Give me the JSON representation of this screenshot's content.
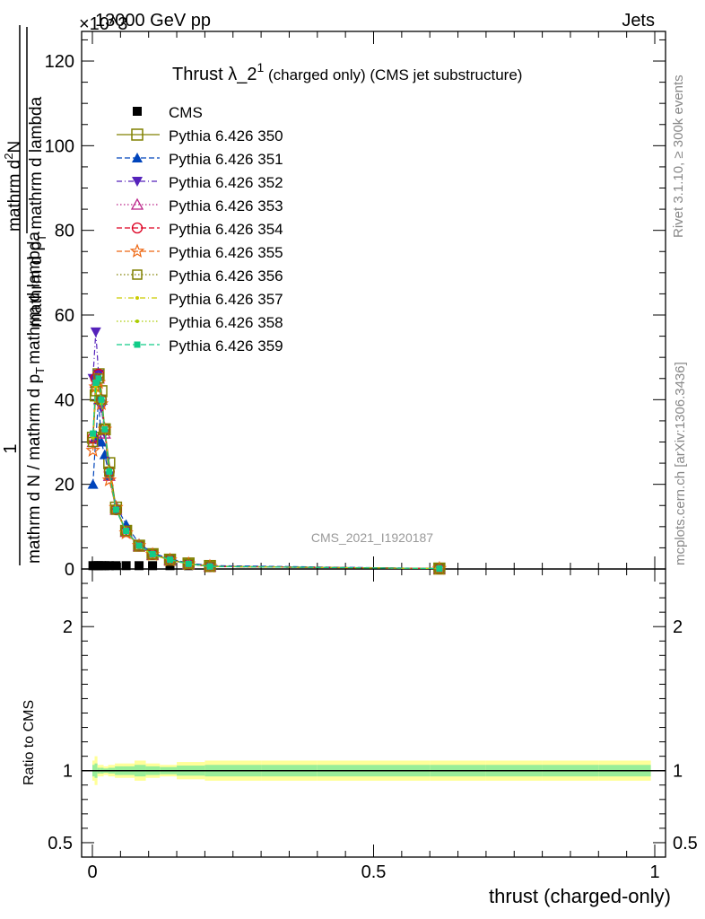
{
  "header": {
    "top_left": "13000 GeV pp",
    "top_right": "Jets",
    "multiplier": "×10^3"
  },
  "side_labels": {
    "rivet": "Rivet 3.1.10, ≥ 300k events",
    "mcplots": "mcplots.cern.ch [arXiv:1306.3436]"
  },
  "watermark": "CMS_2021_I1920187",
  "title": {
    "main": "Thrust λ_2",
    "superscript": "1",
    "suffix": " (charged only) (CMS jet substructure)"
  },
  "ylabel_main": {
    "line1": "1",
    "line2": "mathrm d N / mathrm d p",
    "line2_sub": "T",
    "line2_tail": "mathrm d lambda",
    "numerator": "mathrm d",
    "numerator_sup": "2",
    "numerator_tail": "N",
    "denominator": "mathrm d p",
    "denominator_sub": "T",
    "denominator_tail": " mathrm d lambda"
  },
  "ylabel_ratio": "Ratio to CMS",
  "xlabel": "thrust (charged-only)",
  "colors": {
    "cms": "#000000",
    "band_outer": "#ffff99",
    "band_inner": "#99ee99",
    "s350": "#808000",
    "s351": "#0044bb",
    "s352": "#5522bb",
    "s353": "#bb2288",
    "s354": "#dd0022",
    "s355": "#ee6611",
    "s356": "#808000",
    "s357": "#cccc00",
    "s358": "#aacc00",
    "s359": "#11cc88"
  },
  "chart_data": {
    "type": "line",
    "x_range": [
      -0.02,
      1.0
    ],
    "main_ylim": [
      0,
      127
    ],
    "main_y_multiplier": 1000,
    "main_yticks": [
      0,
      20,
      40,
      60,
      80,
      100,
      120
    ],
    "ratio_ylim": [
      0.4,
      2.4
    ],
    "ratio_yticks": [
      0.5,
      1,
      2
    ],
    "xticks": [
      0,
      0.5,
      1
    ],
    "xtick_labels": [
      "0",
      "0.5",
      "1"
    ],
    "legend_position": "top-left",
    "cms_data": {
      "x": [
        0.001,
        0.006,
        0.011,
        0.016,
        0.022,
        0.03,
        0.042,
        0.06,
        0.083,
        0.107,
        0.138,
        0.171,
        0.209,
        0.617
      ],
      "y": [
        0.15,
        0.15,
        0.15,
        0.15,
        0.15,
        0.15,
        0.15,
        0.15,
        0.15,
        0.15,
        0.15,
        0.15,
        0.15,
        0.15
      ]
    },
    "series": [
      {
        "name": "Pythia 6.426 350",
        "marker": "square-open",
        "dash": "solid",
        "color_key": "s350",
        "y": [
          31,
          41,
          46,
          42,
          33,
          25,
          14.5,
          9,
          5.5,
          3.5,
          2.2,
          1.3,
          0.7,
          0.1
        ]
      },
      {
        "name": "Pythia 6.426 351",
        "marker": "triangle-up",
        "dash": "dashed",
        "color_key": "s351",
        "y": [
          20,
          31,
          40,
          30,
          27,
          22,
          15,
          10.5,
          6,
          3.8,
          2.4,
          1.4,
          0.8,
          0.1
        ]
      },
      {
        "name": "Pythia 6.426 352",
        "marker": "triangle-down",
        "dash": "dashdot",
        "color_key": "s352",
        "y": [
          45,
          56,
          46,
          38,
          32,
          22,
          14,
          9,
          5.5,
          3.5,
          2.1,
          1.2,
          0.6,
          0.1
        ]
      },
      {
        "name": "Pythia 6.426 353",
        "marker": "triangle-up-open",
        "dash": "dotted",
        "color_key": "s353",
        "y": [
          30,
          44,
          45,
          40,
          32,
          22,
          14,
          8.8,
          5.4,
          3.4,
          2.1,
          1.2,
          0.6,
          0.1
        ]
      },
      {
        "name": "Pythia 6.426 354",
        "marker": "circle-open",
        "dash": "dashed",
        "color_key": "s354",
        "y": [
          31,
          45,
          46,
          40,
          33,
          23,
          14,
          9,
          5.5,
          3.5,
          2.2,
          1.2,
          0.6,
          0.1
        ]
      },
      {
        "name": "Pythia 6.426 355",
        "marker": "star-open",
        "dash": "dashed",
        "color_key": "s355",
        "y": [
          28,
          43,
          44,
          39,
          33,
          21,
          14.5,
          8.5,
          5.5,
          3.4,
          2.1,
          1.2,
          0.6,
          0.1
        ]
      },
      {
        "name": "Pythia 6.426 356",
        "marker": "square-open-small",
        "dash": "dotted",
        "color_key": "s356",
        "y": [
          30,
          42,
          45,
          40,
          33,
          23,
          14,
          9,
          5.5,
          3.5,
          2.2,
          1.2,
          0.6,
          0.1
        ]
      },
      {
        "name": "Pythia 6.426 357",
        "marker": "dot",
        "dash": "dashdot",
        "color_key": "s357",
        "y": [
          31,
          43,
          45,
          40,
          33,
          23,
          14,
          9,
          5.4,
          3.4,
          2.1,
          1.2,
          0.6,
          0.1
        ]
      },
      {
        "name": "Pythia 6.426 358",
        "marker": "dot",
        "dash": "dotted",
        "color_key": "s358",
        "y": [
          31,
          42,
          45,
          39,
          33,
          23,
          14,
          9,
          5.4,
          3.4,
          2.1,
          1.2,
          0.6,
          0.1
        ]
      },
      {
        "name": "Pythia 6.426 359",
        "marker": "square-filled-small",
        "dash": "dashed",
        "color_key": "s359",
        "y": [
          32,
          44,
          45,
          40,
          33,
          23,
          14,
          9,
          5.5,
          3.5,
          2.2,
          1.2,
          0.6,
          0.1
        ]
      }
    ],
    "ratio_band": {
      "edges": [
        0,
        0.004,
        0.009,
        0.014,
        0.02,
        0.028,
        0.04,
        0.055,
        0.075,
        0.095,
        0.12,
        0.15,
        0.2,
        0.3,
        0.4,
        0.5,
        0.6,
        0.7,
        0.8,
        0.9,
        0.993
      ],
      "outer_half": [
        0.07,
        0.1,
        0.04,
        0.04,
        0.03,
        0.04,
        0.05,
        0.05,
        0.07,
        0.05,
        0.04,
        0.06,
        0.07,
        0.07,
        0.07,
        0.07,
        0.07,
        0.07,
        0.07,
        0.07
      ],
      "inner_half": [
        0.04,
        0.05,
        0.02,
        0.02,
        0.015,
        0.02,
        0.03,
        0.03,
        0.04,
        0.03,
        0.025,
        0.035,
        0.04,
        0.04,
        0.04,
        0.04,
        0.04,
        0.04,
        0.04,
        0.04
      ]
    }
  }
}
